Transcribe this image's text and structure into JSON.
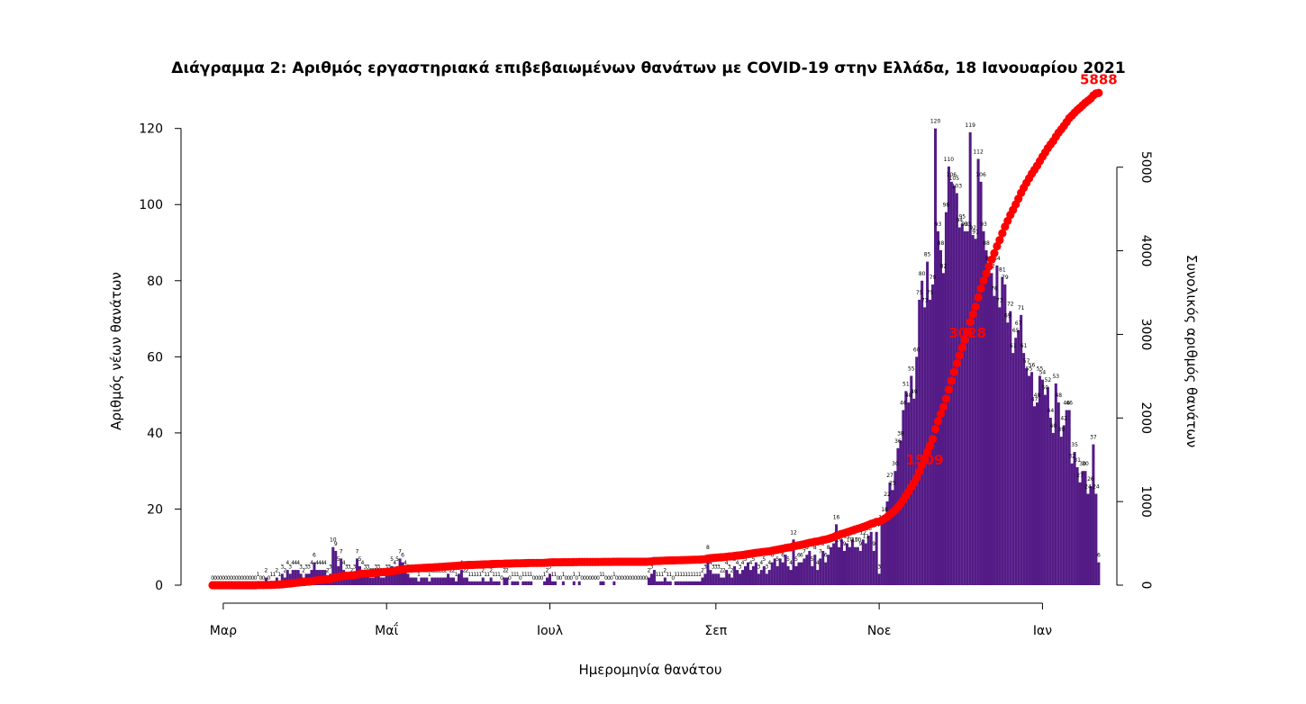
{
  "chart_data": {
    "type": "bar+line",
    "title": "Διάγραμμα 2: Αριθμός εργαστηριακά επιβεβαιωμένων θανάτων με COVID-19 στην Ελλάδα, 18 Ιανουαρίου 2021",
    "xlabel": "Ημερομηνία θανάτου",
    "ylabel_left": "Αριθμός νέων θανάτων",
    "ylabel_right": "Συνολικός αριθμός θανάτων",
    "x_ticks": [
      "Μαρ",
      "Μαΐ",
      "Ιουλ",
      "Σεπ",
      "Νοε",
      "Ιαν"
    ],
    "y_left_ticks": [
      0,
      20,
      40,
      60,
      80,
      100,
      120
    ],
    "y_right_ticks": [
      0,
      1000,
      2000,
      3000,
      4000,
      5000
    ],
    "ylim_left": [
      0,
      123
    ],
    "ylim_right": [
      0,
      5600
    ],
    "first_date": "2020-02-26",
    "last_date": "2021-01-17",
    "bar_color": "#541b86",
    "line_color": "#ff0000",
    "daily_deaths": [
      0,
      0,
      0,
      0,
      0,
      0,
      0,
      0,
      0,
      0,
      0,
      0,
      0,
      0,
      0,
      0,
      0,
      1,
      0,
      0,
      2,
      0,
      1,
      1,
      2,
      1,
      3,
      2,
      4,
      3,
      4,
      4,
      4,
      3,
      2,
      3,
      3,
      4,
      6,
      4,
      4,
      4,
      4,
      2,
      3,
      10,
      9,
      5,
      7,
      4,
      3,
      3,
      2,
      3,
      7,
      5,
      4,
      3,
      3,
      2,
      2,
      3,
      3,
      2,
      2,
      3,
      3,
      5,
      4,
      5,
      7,
      6,
      4,
      3,
      2,
      2,
      2,
      1,
      2,
      2,
      2,
      1,
      2,
      2,
      2,
      2,
      2,
      2,
      3,
      2,
      2,
      1,
      3,
      4,
      2,
      2,
      1,
      1,
      1,
      1,
      1,
      2,
      1,
      1,
      2,
      1,
      1,
      1,
      0,
      2,
      2,
      0,
      1,
      1,
      1,
      0,
      1,
      1,
      1,
      1,
      0,
      0,
      0,
      0,
      1,
      2,
      3,
      1,
      1,
      0,
      0,
      1,
      0,
      0,
      0,
      1,
      0,
      1,
      0,
      0,
      0,
      0,
      0,
      0,
      0,
      1,
      1,
      0,
      0,
      0,
      1,
      0,
      0,
      0,
      0,
      0,
      0,
      0,
      0,
      0,
      0,
      0,
      0,
      2,
      3,
      4,
      1,
      1,
      1,
      2,
      1,
      1,
      0,
      1,
      1,
      1,
      1,
      1,
      1,
      1,
      1,
      1,
      1,
      2,
      3,
      8,
      4,
      3,
      3,
      3,
      2,
      2,
      4,
      3,
      2,
      5,
      4,
      3,
      4,
      5,
      6,
      4,
      5,
      6,
      3,
      4,
      5,
      3,
      4,
      6,
      7,
      5,
      7,
      6,
      8,
      5,
      4,
      12,
      5,
      6,
      6,
      7,
      8,
      9,
      5,
      8,
      4,
      7,
      9,
      6,
      8,
      10,
      11,
      16,
      10,
      12,
      9,
      11,
      10,
      12,
      10,
      10,
      9,
      12,
      11,
      13,
      14,
      9,
      14,
      3,
      16,
      18,
      22,
      27,
      25,
      30,
      36,
      38,
      46,
      51,
      48,
      55,
      49,
      60,
      75,
      80,
      73,
      85,
      75,
      79,
      120,
      93,
      88,
      82,
      98,
      110,
      106,
      105,
      103,
      94,
      95,
      93,
      93,
      119,
      92,
      91,
      112,
      106,
      93,
      88,
      84,
      82,
      76,
      84,
      73,
      81,
      79,
      69,
      72,
      61,
      65,
      67,
      71,
      61,
      57,
      55,
      56,
      47,
      48,
      55,
      54,
      50,
      52,
      44,
      40,
      53,
      48,
      39,
      42,
      46,
      46,
      32,
      35,
      31,
      27,
      30,
      30,
      24,
      26,
      37,
      24,
      6
    ]
  }
}
